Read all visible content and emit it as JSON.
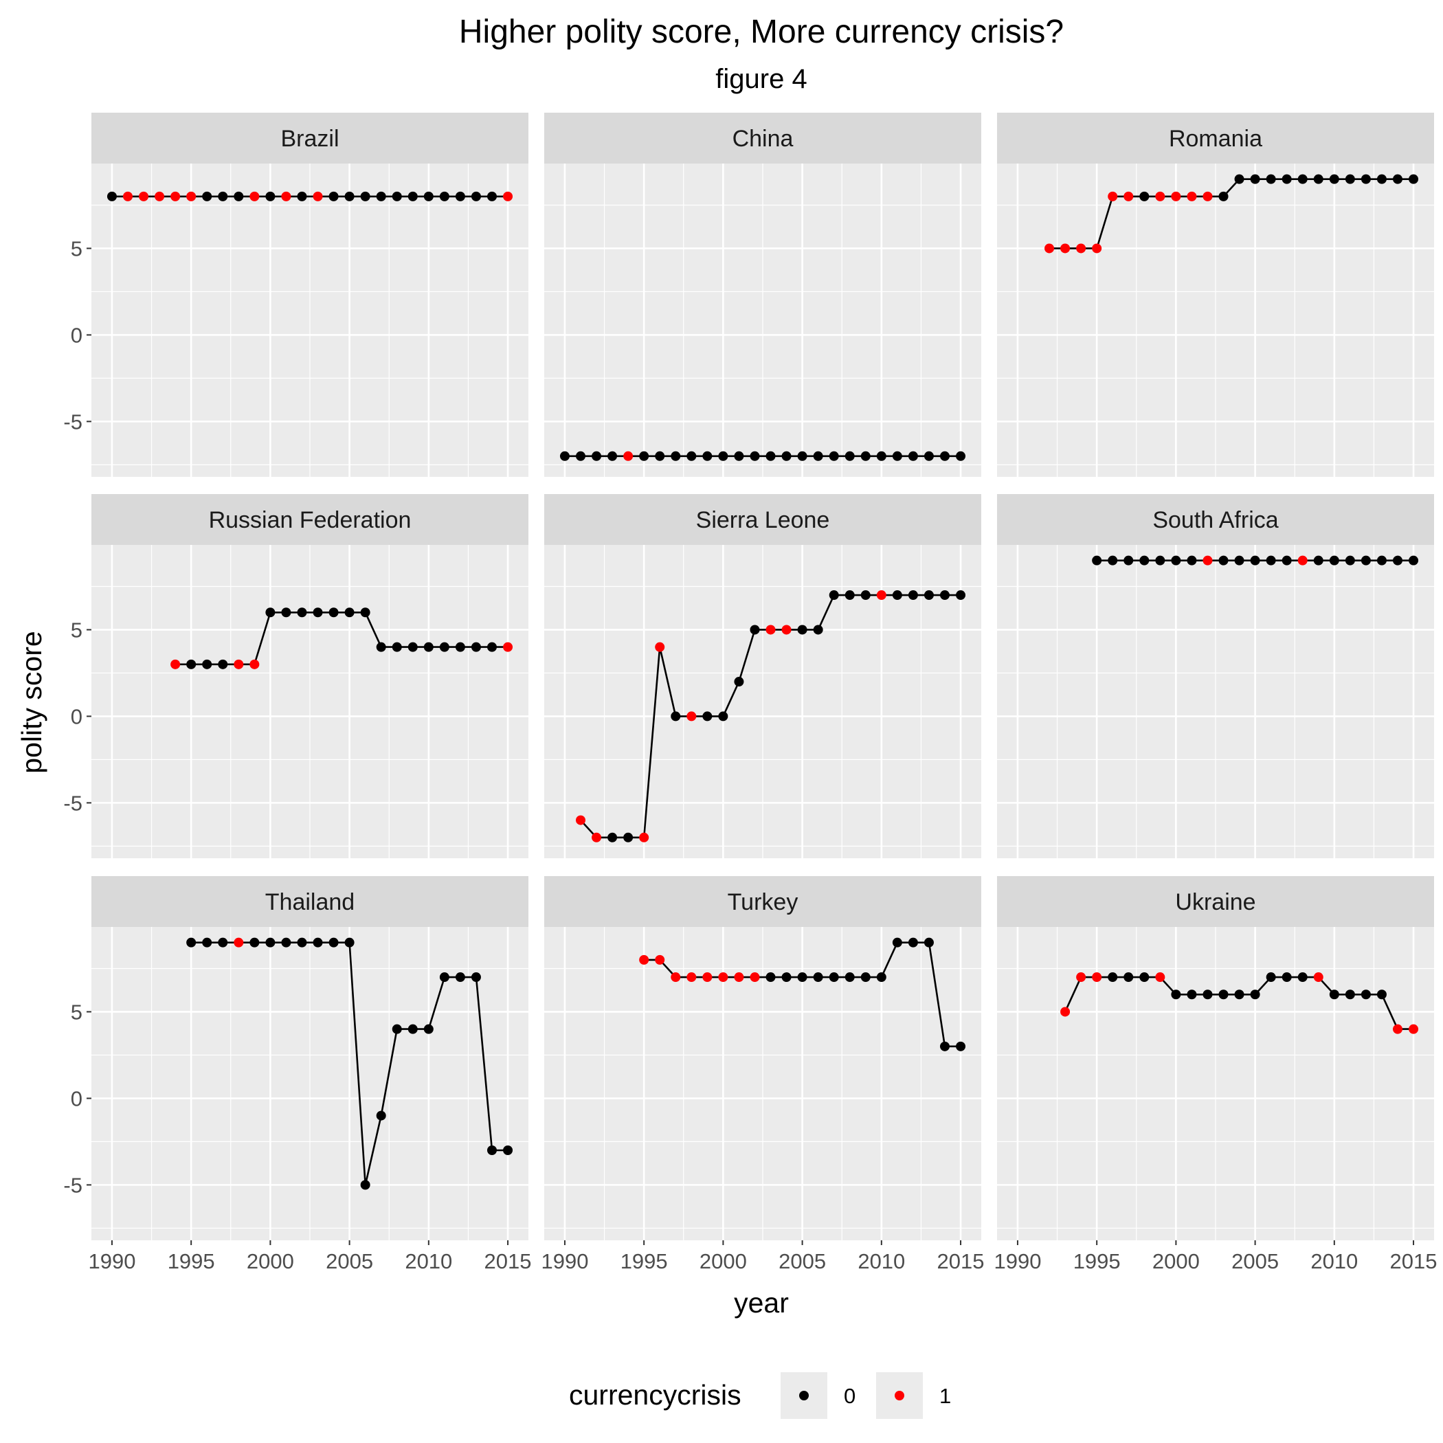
{
  "chart_data": {
    "type": "line",
    "title": "Higher polity score, More currency crisis?",
    "subtitle": "figure 4",
    "xlabel": "year",
    "ylabel": "polity score",
    "xlim": [
      1988.7,
      2016.3
    ],
    "ylim": [
      -8.2,
      9.9
    ],
    "x_ticks": [
      1990,
      1995,
      2000,
      2005,
      2010,
      2015
    ],
    "y_ticks": [
      -5,
      0,
      5
    ],
    "grid": true,
    "colors": {
      "0": "#000000",
      "1": "#ff0000",
      "line": "#000000",
      "panel_bg": "#ebebeb",
      "strip_bg": "#d9d9d9",
      "grid": "#ffffff"
    },
    "legend": {
      "title": "currencycrisis",
      "position": "bottom",
      "entries": [
        {
          "label": "0",
          "color": "#000000"
        },
        {
          "label": "1",
          "color": "#ff0000"
        }
      ]
    },
    "panels": [
      {
        "name": "Brazil",
        "start": 1990,
        "values": [
          8,
          8,
          8,
          8,
          8,
          8,
          8,
          8,
          8,
          8,
          8,
          8,
          8,
          8,
          8,
          8,
          8,
          8,
          8,
          8,
          8,
          8,
          8,
          8,
          8,
          8
        ],
        "crisis": [
          0,
          1,
          1,
          1,
          1,
          1,
          0,
          0,
          0,
          1,
          0,
          1,
          0,
          1,
          0,
          0,
          0,
          0,
          0,
          0,
          0,
          0,
          0,
          0,
          0,
          1
        ]
      },
      {
        "name": "China",
        "start": 1990,
        "values": [
          -7,
          -7,
          -7,
          -7,
          -7,
          -7,
          -7,
          -7,
          -7,
          -7,
          -7,
          -7,
          -7,
          -7,
          -7,
          -7,
          -7,
          -7,
          -7,
          -7,
          -7,
          -7,
          -7,
          -7,
          -7,
          -7
        ],
        "crisis": [
          0,
          0,
          0,
          0,
          1,
          0,
          0,
          0,
          0,
          0,
          0,
          0,
          0,
          0,
          0,
          0,
          0,
          0,
          0,
          0,
          0,
          0,
          0,
          0,
          0,
          0
        ]
      },
      {
        "name": "Romania",
        "start": 1992,
        "values": [
          5,
          5,
          5,
          5,
          8,
          8,
          8,
          8,
          8,
          8,
          8,
          8,
          9,
          9,
          9,
          9,
          9,
          9,
          9,
          9,
          9,
          9,
          9,
          9
        ],
        "crisis": [
          1,
          1,
          1,
          1,
          1,
          1,
          0,
          1,
          1,
          1,
          1,
          0,
          0,
          0,
          0,
          0,
          0,
          0,
          0,
          0,
          0,
          0,
          0,
          0
        ]
      },
      {
        "name": "Russian Federation",
        "start": 1994,
        "values": [
          3,
          3,
          3,
          3,
          3,
          3,
          6,
          6,
          6,
          6,
          6,
          6,
          6,
          4,
          4,
          4,
          4,
          4,
          4,
          4,
          4,
          4
        ],
        "crisis": [
          1,
          0,
          0,
          0,
          1,
          1,
          0,
          0,
          0,
          0,
          0,
          0,
          0,
          0,
          0,
          0,
          0,
          0,
          0,
          0,
          0,
          1
        ]
      },
      {
        "name": "Sierra Leone",
        "start": 1991,
        "values": [
          -6,
          -7,
          -7,
          -7,
          -7,
          4,
          0,
          0,
          0,
          0,
          2,
          5,
          5,
          5,
          5,
          5,
          7,
          7,
          7,
          7,
          7,
          7,
          7,
          7,
          7
        ],
        "crisis": [
          1,
          1,
          0,
          0,
          1,
          1,
          0,
          1,
          0,
          0,
          0,
          0,
          1,
          1,
          0,
          0,
          0,
          0,
          0,
          1,
          0,
          0,
          0,
          0,
          0
        ]
      },
      {
        "name": "South Africa",
        "start": 1995,
        "values": [
          9,
          9,
          9,
          9,
          9,
          9,
          9,
          9,
          9,
          9,
          9,
          9,
          9,
          9,
          9,
          9,
          9,
          9,
          9,
          9,
          9
        ],
        "crisis": [
          0,
          0,
          0,
          0,
          0,
          0,
          0,
          1,
          0,
          0,
          0,
          0,
          0,
          1,
          0,
          0,
          0,
          0,
          0,
          0,
          0
        ]
      },
      {
        "name": "Thailand",
        "start": 1995,
        "values": [
          9,
          9,
          9,
          9,
          9,
          9,
          9,
          9,
          9,
          9,
          9,
          -5,
          -1,
          4,
          4,
          4,
          7,
          7,
          7,
          -3,
          -3
        ],
        "crisis": [
          0,
          0,
          0,
          1,
          0,
          0,
          0,
          0,
          0,
          0,
          0,
          0,
          0,
          0,
          0,
          0,
          0,
          0,
          0,
          0,
          0
        ]
      },
      {
        "name": "Turkey",
        "start": 1995,
        "values": [
          8,
          8,
          7,
          7,
          7,
          7,
          7,
          7,
          7,
          7,
          7,
          7,
          7,
          7,
          7,
          7,
          9,
          9,
          9,
          3,
          3
        ],
        "crisis": [
          1,
          1,
          1,
          1,
          1,
          1,
          1,
          1,
          0,
          0,
          0,
          0,
          0,
          0,
          0,
          0,
          0,
          0,
          0,
          0,
          0
        ]
      },
      {
        "name": "Ukraine",
        "start": 1993,
        "values": [
          5,
          7,
          7,
          7,
          7,
          7,
          7,
          6,
          6,
          6,
          6,
          6,
          6,
          7,
          7,
          7,
          7,
          6,
          6,
          6,
          6,
          4,
          4
        ],
        "crisis": [
          1,
          1,
          1,
          0,
          0,
          0,
          1,
          0,
          0,
          0,
          0,
          0,
          0,
          0,
          0,
          0,
          1,
          0,
          0,
          0,
          0,
          1,
          1
        ]
      }
    ]
  }
}
